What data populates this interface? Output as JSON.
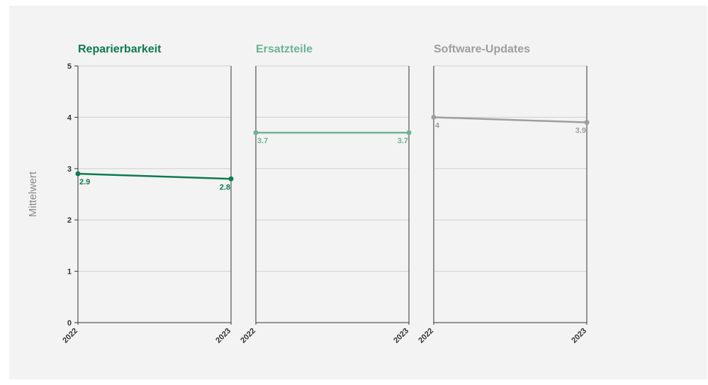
{
  "chart_data": {
    "type": "line",
    "ylabel": "Mittelwert",
    "ylim": [
      0,
      5
    ],
    "yticks": [
      0,
      1,
      2,
      3,
      4,
      5
    ],
    "categories": [
      "2022",
      "2023"
    ],
    "grid": true,
    "legend": "none",
    "panels": [
      {
        "title": "Reparierbarkeit",
        "color": "#0e7a4e",
        "values": [
          2.9,
          2.8
        ],
        "labels": [
          "2.9",
          "2.8"
        ]
      },
      {
        "title": "Ersatzteile",
        "color": "#6db495",
        "values": [
          3.7,
          3.7
        ],
        "labels": [
          "3.7",
          "3.7"
        ]
      },
      {
        "title": "Software-Updates",
        "color": "#9e9e9e",
        "values": [
          4.0,
          3.9
        ],
        "labels": [
          "4",
          "3.9"
        ]
      }
    ]
  }
}
